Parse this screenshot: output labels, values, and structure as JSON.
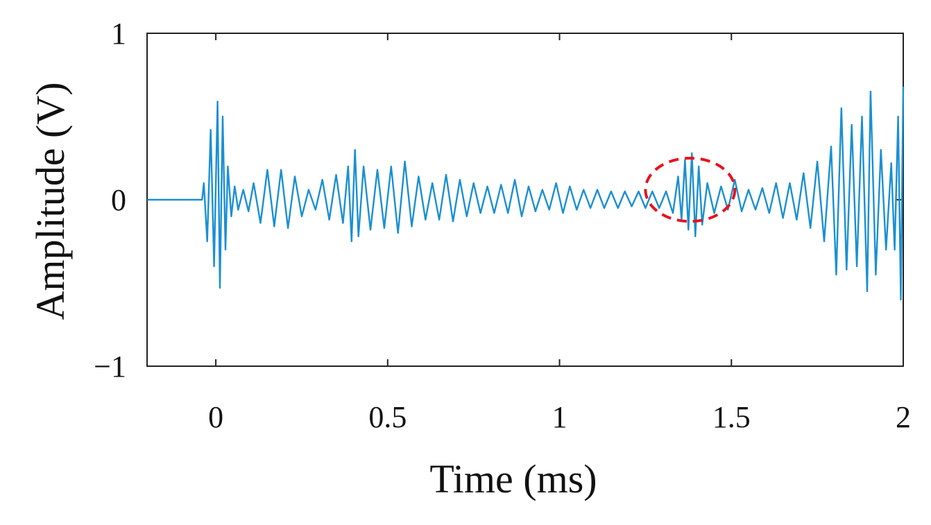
{
  "chart_data": {
    "type": "line",
    "title": "",
    "xlabel": "Time (ms)",
    "ylabel": "Amplitude (V)",
    "xlim": [
      -0.2,
      2.0
    ],
    "ylim": [
      -1,
      1
    ],
    "x_ticks": [
      {
        "value": 0,
        "label": "0"
      },
      {
        "value": 0.5,
        "label": "0.5"
      },
      {
        "value": 1,
        "label": "1"
      },
      {
        "value": 1.5,
        "label": "1.5"
      },
      {
        "value": 2,
        "label": "2"
      }
    ],
    "y_ticks": [
      {
        "value": 1,
        "label": "1"
      },
      {
        "value": 0,
        "label": "0"
      },
      {
        "value": -1,
        "label": "−1"
      }
    ],
    "grid": false,
    "legend": "none",
    "colors": {
      "signal": "#1a8fd2",
      "annotation": "#e8121c",
      "axis": "#222222"
    },
    "series": [
      {
        "points": [
          [
            -0.2,
            0.0
          ],
          [
            -0.04,
            0.0
          ],
          [
            -0.035,
            0.1
          ],
          [
            -0.025,
            -0.25
          ],
          [
            -0.015,
            0.42
          ],
          [
            -0.005,
            -0.4
          ],
          [
            0.005,
            0.59
          ],
          [
            0.012,
            -0.53
          ],
          [
            0.02,
            0.5
          ],
          [
            0.028,
            -0.3
          ],
          [
            0.035,
            0.2
          ],
          [
            0.045,
            -0.1
          ],
          [
            0.055,
            0.08
          ],
          [
            0.065,
            -0.06
          ],
          [
            0.08,
            0.06
          ],
          [
            0.095,
            -0.07
          ],
          [
            0.11,
            0.1
          ],
          [
            0.13,
            -0.14
          ],
          [
            0.15,
            0.18
          ],
          [
            0.17,
            -0.16
          ],
          [
            0.19,
            0.18
          ],
          [
            0.21,
            -0.17
          ],
          [
            0.23,
            0.14
          ],
          [
            0.25,
            -0.1
          ],
          [
            0.27,
            0.06
          ],
          [
            0.29,
            -0.06
          ],
          [
            0.31,
            0.12
          ],
          [
            0.33,
            -0.12
          ],
          [
            0.35,
            0.15
          ],
          [
            0.37,
            -0.14
          ],
          [
            0.385,
            0.2
          ],
          [
            0.395,
            -0.25
          ],
          [
            0.405,
            0.3
          ],
          [
            0.415,
            -0.22
          ],
          [
            0.43,
            0.2
          ],
          [
            0.45,
            -0.18
          ],
          [
            0.47,
            0.18
          ],
          [
            0.49,
            -0.17
          ],
          [
            0.51,
            0.2
          ],
          [
            0.53,
            -0.2
          ],
          [
            0.55,
            0.23
          ],
          [
            0.57,
            -0.16
          ],
          [
            0.59,
            0.14
          ],
          [
            0.61,
            -0.12
          ],
          [
            0.63,
            0.1
          ],
          [
            0.65,
            -0.12
          ],
          [
            0.67,
            0.15
          ],
          [
            0.69,
            -0.13
          ],
          [
            0.71,
            0.12
          ],
          [
            0.73,
            -0.1
          ],
          [
            0.75,
            0.1
          ],
          [
            0.77,
            -0.08
          ],
          [
            0.79,
            0.08
          ],
          [
            0.81,
            -0.08
          ],
          [
            0.83,
            0.09
          ],
          [
            0.85,
            -0.08
          ],
          [
            0.87,
            0.12
          ],
          [
            0.89,
            -0.1
          ],
          [
            0.91,
            0.08
          ],
          [
            0.93,
            -0.07
          ],
          [
            0.95,
            0.06
          ],
          [
            0.97,
            -0.06
          ],
          [
            0.99,
            0.1
          ],
          [
            1.01,
            -0.08
          ],
          [
            1.03,
            0.08
          ],
          [
            1.05,
            -0.06
          ],
          [
            1.07,
            0.06
          ],
          [
            1.09,
            -0.05
          ],
          [
            1.11,
            0.06
          ],
          [
            1.13,
            -0.05
          ],
          [
            1.15,
            0.05
          ],
          [
            1.17,
            -0.05
          ],
          [
            1.19,
            0.05
          ],
          [
            1.21,
            -0.04
          ],
          [
            1.23,
            0.05
          ],
          [
            1.25,
            -0.05
          ],
          [
            1.27,
            0.05
          ],
          [
            1.29,
            -0.05
          ],
          [
            1.31,
            0.05
          ],
          [
            1.33,
            -0.08
          ],
          [
            1.345,
            0.14
          ],
          [
            1.355,
            -0.12
          ],
          [
            1.365,
            0.24
          ],
          [
            1.375,
            -0.18
          ],
          [
            1.385,
            0.28
          ],
          [
            1.395,
            -0.22
          ],
          [
            1.405,
            0.2
          ],
          [
            1.415,
            -0.15
          ],
          [
            1.43,
            0.1
          ],
          [
            1.45,
            -0.08
          ],
          [
            1.47,
            0.08
          ],
          [
            1.49,
            -0.06
          ],
          [
            1.51,
            0.12
          ],
          [
            1.53,
            -0.07
          ],
          [
            1.55,
            0.06
          ],
          [
            1.57,
            -0.06
          ],
          [
            1.59,
            0.07
          ],
          [
            1.61,
            -0.08
          ],
          [
            1.63,
            0.1
          ],
          [
            1.65,
            -0.11
          ],
          [
            1.67,
            0.1
          ],
          [
            1.69,
            -0.12
          ],
          [
            1.71,
            0.16
          ],
          [
            1.73,
            -0.17
          ],
          [
            1.75,
            0.23
          ],
          [
            1.77,
            -0.25
          ],
          [
            1.79,
            0.32
          ],
          [
            1.805,
            -0.45
          ],
          [
            1.82,
            0.55
          ],
          [
            1.835,
            -0.42
          ],
          [
            1.85,
            0.45
          ],
          [
            1.865,
            -0.4
          ],
          [
            1.88,
            0.5
          ],
          [
            1.895,
            -0.55
          ],
          [
            1.905,
            0.65
          ],
          [
            1.92,
            -0.45
          ],
          [
            1.935,
            0.3
          ],
          [
            1.95,
            -0.3
          ],
          [
            1.965,
            0.22
          ],
          [
            1.975,
            -0.3
          ],
          [
            1.985,
            0.5
          ],
          [
            1.993,
            -0.6
          ],
          [
            2.0,
            0.68
          ]
        ]
      }
    ],
    "annotations": [
      {
        "type": "dashed-circle",
        "center": [
          1.38,
          0.06
        ],
        "radius_x": 0.13,
        "radius_y": 0.19
      }
    ]
  }
}
